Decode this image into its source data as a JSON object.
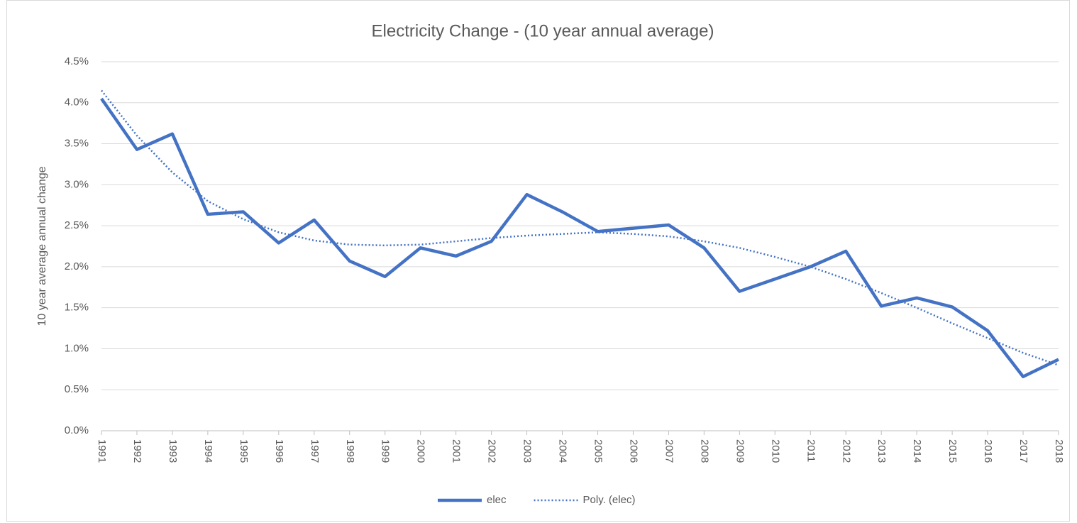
{
  "chart_data": {
    "type": "line",
    "title": "Electricity Change - (10 year annual average)",
    "ylabel": "10 year average annual change",
    "categories": [
      "1991",
      "1992",
      "1993",
      "1994",
      "1995",
      "1996",
      "1997",
      "1998",
      "1999",
      "2000",
      "2001",
      "2002",
      "2003",
      "2004",
      "2005",
      "2006",
      "2007",
      "2008",
      "2009",
      "2010",
      "2011",
      "2012",
      "2013",
      "2014",
      "2015",
      "2016",
      "2017",
      "2018"
    ],
    "series": [
      {
        "name": "elec",
        "color": "#4472c4",
        "style": "solid",
        "values": [
          4.05,
          3.43,
          3.62,
          2.64,
          2.67,
          2.29,
          2.57,
          2.07,
          1.88,
          2.23,
          2.13,
          2.31,
          2.88,
          2.67,
          2.43,
          2.47,
          2.51,
          2.23,
          1.7,
          1.85,
          2.0,
          2.19,
          1.52,
          1.62,
          1.51,
          1.22,
          0.66,
          0.87
        ]
      },
      {
        "name": "Poly. (elec)",
        "color": "#4472c4",
        "style": "dotted",
        "values": [
          4.15,
          3.6,
          3.15,
          2.8,
          2.58,
          2.42,
          2.32,
          2.27,
          2.26,
          2.27,
          2.31,
          2.35,
          2.38,
          2.4,
          2.42,
          2.4,
          2.37,
          2.31,
          2.23,
          2.12,
          2.0,
          1.85,
          1.68,
          1.5,
          1.31,
          1.13,
          0.95,
          0.8
        ]
      }
    ],
    "ylim": [
      0,
      4.5
    ],
    "yticks": [
      {
        "value": 0,
        "label": "0.0%"
      },
      {
        "value": 0.5,
        "label": "0.5%"
      },
      {
        "value": 1,
        "label": "1.0%"
      },
      {
        "value": 1.5,
        "label": "1.5%"
      },
      {
        "value": 2,
        "label": "2.0%"
      },
      {
        "value": 2.5,
        "label": "2.5%"
      },
      {
        "value": 3,
        "label": "3.0%"
      },
      {
        "value": 3.5,
        "label": "3.5%"
      },
      {
        "value": 4,
        "label": "4.0%"
      },
      {
        "value": 4.5,
        "label": "4.5%"
      }
    ],
    "grid": true,
    "legend": "bottom"
  }
}
